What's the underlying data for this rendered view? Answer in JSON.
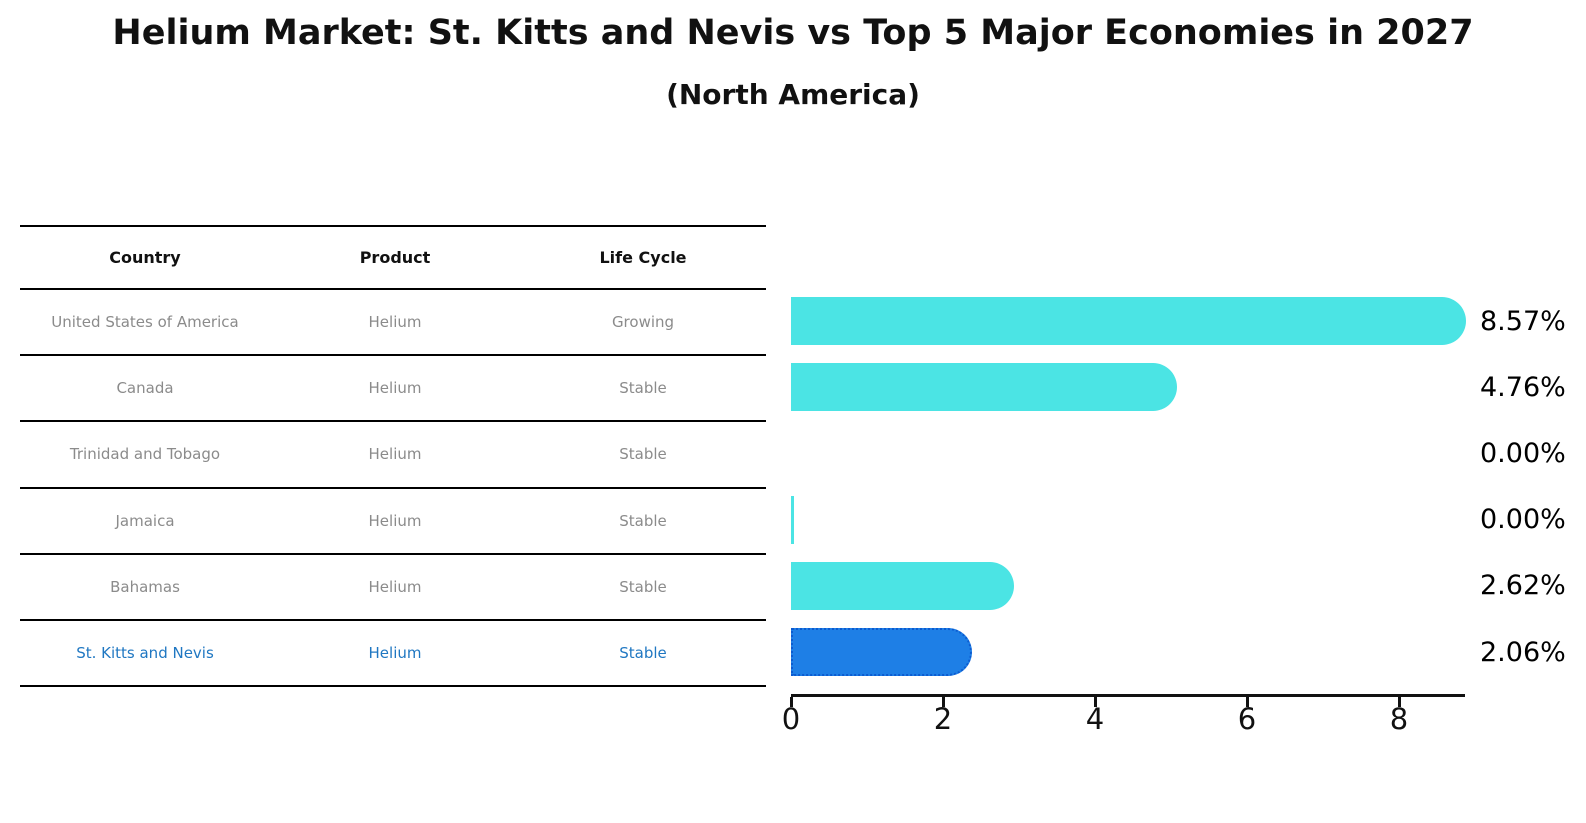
{
  "title": "Helium Market: St. Kitts and Nevis vs Top 5 Major Economies in 2027",
  "subtitle": "(North America)",
  "table": {
    "headers": [
      "Country",
      "Product",
      "Life Cycle"
    ],
    "rows": [
      {
        "country": "United States of America",
        "product": "Helium",
        "life_cycle": "Growing",
        "highlight": false
      },
      {
        "country": "Canada",
        "product": "Helium",
        "life_cycle": "Stable",
        "highlight": false
      },
      {
        "country": "Trinidad and Tobago",
        "product": "Helium",
        "life_cycle": "Stable",
        "highlight": false
      },
      {
        "country": "Jamaica",
        "product": "Helium",
        "life_cycle": "Stable",
        "highlight": false
      },
      {
        "country": "Bahamas",
        "product": "Helium",
        "life_cycle": "Stable",
        "highlight": false
      },
      {
        "country": "St. Kitts and Nevis",
        "product": "Helium",
        "life_cycle": "Stable",
        "highlight": true
      }
    ]
  },
  "chart_data": {
    "type": "bar",
    "orientation": "horizontal",
    "title": "Helium Market: St. Kitts and Nevis vs Top 5 Major Economies in 2027 (North America)",
    "categories": [
      "United States of America",
      "Canada",
      "Trinidad and Tobago",
      "Jamaica",
      "Bahamas",
      "St. Kitts and Nevis"
    ],
    "values": [
      8.57,
      4.76,
      0.0,
      0.0,
      2.62,
      2.06
    ],
    "value_labels": [
      "8.57%",
      "4.76%",
      "0.00%",
      "0.00%",
      "2.62%",
      "2.06%"
    ],
    "bar_styles": [
      "normal",
      "normal",
      "none",
      "sliver",
      "normal",
      "highlight"
    ],
    "x_ticks": [
      "0",
      "2",
      "4",
      "6",
      "8"
    ],
    "xlim": [
      0,
      8.85
    ],
    "grid": false,
    "legend": "none",
    "bar_color": "#4BE4E4",
    "highlight_bar_color": "#1E7FE6",
    "highlight_border_color": "#0C5BD0",
    "axis_color": "#111111",
    "value_label_color": "#000000",
    "muted_text_color": "#8b8b8b",
    "highlight_text_color": "#1F77C2"
  }
}
